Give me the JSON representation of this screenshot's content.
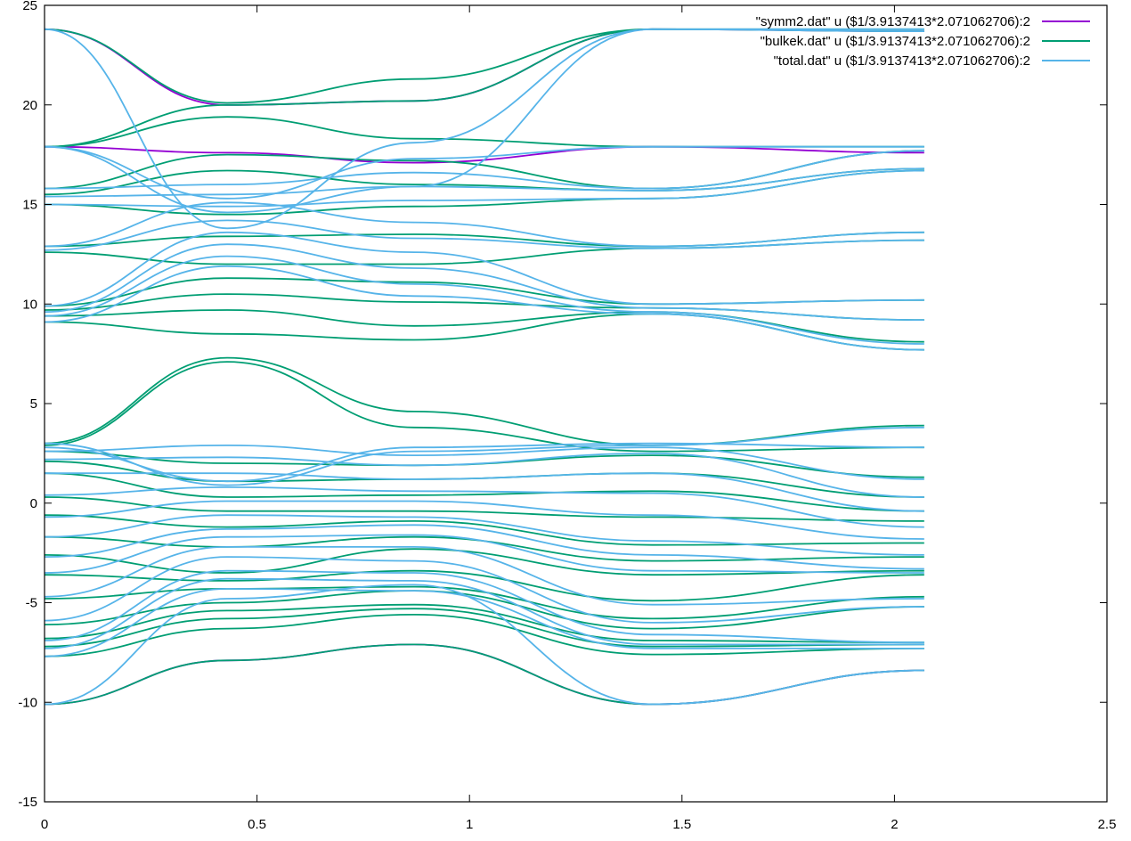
{
  "chart_data": {
    "type": "line",
    "title": "",
    "xlabel": "",
    "ylabel": "",
    "xlim": [
      0,
      2.5
    ],
    "ylim": [
      -15,
      25
    ],
    "x_ticks": [
      0,
      0.5,
      1,
      1.5,
      2,
      2.5
    ],
    "x_tick_labels": [
      "0",
      "0.5",
      "1",
      "1.5",
      "2",
      "2.5"
    ],
    "y_ticks": [
      -15,
      -10,
      -5,
      0,
      5,
      10,
      15,
      20,
      25
    ],
    "y_tick_labels": [
      "-15",
      "-10",
      "-5",
      "0",
      "5",
      "10",
      "15",
      "20",
      "25"
    ],
    "grid": false,
    "legend_position": "top-right",
    "x_knots": [
      0,
      0.43,
      0.87,
      1.43,
      2.07
    ],
    "series": [
      {
        "name": "\"symm2.dat\" u ($1/3.9137413*2.071062706):2",
        "color": "#9400d3",
        "bands": [
          [
            -10.1,
            -7.9,
            -7.1,
            -10.1,
            -8.4
          ],
          [
            23.8,
            20.0,
            20.2,
            23.8,
            23.7
          ],
          [
            17.9,
            17.6,
            17.1,
            17.9,
            17.6
          ]
        ]
      },
      {
        "name": "\"bulkek.dat\" u ($1/3.9137413*2.071062706):2",
        "color": "#009e73",
        "bands": [
          [
            -10.1,
            -7.9,
            -7.1,
            -10.1,
            -8.4
          ],
          [
            -7.7,
            -6.3,
            -5.6,
            -7.6,
            -7.3
          ],
          [
            -7.2,
            -5.8,
            -5.3,
            -7.2,
            -7.1
          ],
          [
            -6.8,
            -5.4,
            -5.1,
            -6.9,
            -7.0
          ],
          [
            -6.1,
            -5.0,
            -4.4,
            -6.3,
            -5.2
          ],
          [
            -4.8,
            -4.3,
            -4.2,
            -5.8,
            -4.7
          ],
          [
            -3.6,
            -3.9,
            -3.4,
            -4.9,
            -3.6
          ],
          [
            -2.6,
            -3.5,
            -2.3,
            -3.6,
            -3.4
          ],
          [
            -1.7,
            -2.2,
            -1.7,
            -2.9,
            -2.7
          ],
          [
            -0.6,
            -1.2,
            -0.9,
            -2.1,
            -2.0
          ],
          [
            0.3,
            -0.4,
            -0.4,
            -0.7,
            -0.9
          ],
          [
            1.5,
            0.3,
            0.4,
            0.6,
            -0.4
          ],
          [
            2.1,
            1.1,
            1.2,
            1.5,
            0.3
          ],
          [
            2.6,
            2.0,
            1.9,
            2.4,
            1.3
          ],
          [
            2.9,
            7.1,
            3.8,
            2.6,
            2.8
          ],
          [
            3.0,
            7.3,
            4.6,
            2.9,
            3.9
          ],
          [
            9.1,
            8.5,
            8.2,
            9.5,
            7.7
          ],
          [
            9.4,
            9.7,
            8.9,
            9.6,
            8.1
          ],
          [
            9.7,
            10.5,
            10.1,
            9.8,
            9.2
          ],
          [
            9.9,
            11.3,
            11.1,
            10.0,
            10.2
          ],
          [
            12.6,
            12.0,
            12.0,
            12.8,
            13.2
          ],
          [
            12.9,
            13.4,
            13.5,
            12.9,
            13.6
          ],
          [
            15.0,
            14.5,
            14.9,
            15.3,
            16.7
          ],
          [
            15.5,
            16.7,
            16.0,
            15.7,
            16.8
          ],
          [
            15.8,
            17.5,
            17.2,
            15.8,
            17.7
          ],
          [
            17.9,
            19.4,
            18.3,
            17.9,
            17.9
          ],
          [
            17.9,
            20.0,
            20.2,
            23.8,
            23.7
          ],
          [
            23.8,
            20.1,
            21.3,
            23.8,
            23.8
          ]
        ]
      },
      {
        "name": "\"total.dat\" u ($1/3.9137413*2.071062706):2",
        "color": "#56b4e9",
        "bands": [
          [
            -10.1,
            -4.8,
            -4.1,
            -10.1,
            -8.4
          ],
          [
            -7.7,
            -4.3,
            -4.4,
            -7.3,
            -7.3
          ],
          [
            -7.3,
            -3.8,
            -3.9,
            -7.1,
            -7.1
          ],
          [
            -6.9,
            -3.4,
            -3.5,
            -6.6,
            -7.0
          ],
          [
            -5.9,
            -2.7,
            -2.9,
            -6.0,
            -5.2
          ],
          [
            -4.7,
            -2.2,
            -2.2,
            -5.1,
            -4.8
          ],
          [
            -3.5,
            -1.7,
            -1.6,
            -3.4,
            -3.5
          ],
          [
            -2.7,
            -1.3,
            -1.1,
            -2.6,
            -3.3
          ],
          [
            -1.7,
            -0.6,
            -0.7,
            -1.9,
            -2.6
          ],
          [
            -0.7,
            0.1,
            0.1,
            -0.6,
            -1.8
          ],
          [
            0.4,
            0.8,
            0.6,
            0.5,
            -1.2
          ],
          [
            1.5,
            1.5,
            1.2,
            1.5,
            -0.4
          ],
          [
            2.2,
            2.3,
            1.9,
            2.5,
            0.3
          ],
          [
            2.6,
            2.9,
            2.4,
            2.8,
            1.2
          ],
          [
            2.8,
            1.1,
            2.8,
            3.0,
            2.8
          ],
          [
            3.0,
            0.9,
            2.6,
            2.9,
            3.8
          ],
          [
            9.1,
            11.9,
            10.4,
            9.5,
            7.7
          ],
          [
            9.4,
            12.4,
            11.0,
            9.6,
            8.0
          ],
          [
            9.6,
            13.0,
            11.8,
            9.8,
            9.2
          ],
          [
            9.9,
            13.6,
            12.6,
            10.0,
            10.2
          ],
          [
            12.7,
            14.2,
            13.3,
            12.8,
            13.2
          ],
          [
            12.9,
            15.1,
            14.1,
            12.9,
            13.6
          ],
          [
            15.0,
            14.9,
            15.2,
            15.3,
            16.7
          ],
          [
            15.4,
            15.5,
            15.9,
            15.7,
            16.8
          ],
          [
            15.8,
            16.0,
            16.6,
            15.8,
            17.7
          ],
          [
            17.9,
            15.3,
            17.3,
            17.9,
            17.9
          ],
          [
            17.9,
            14.6,
            15.9,
            23.8,
            23.7
          ],
          [
            23.8,
            13.8,
            18.1,
            23.8,
            23.8
          ]
        ]
      }
    ]
  }
}
